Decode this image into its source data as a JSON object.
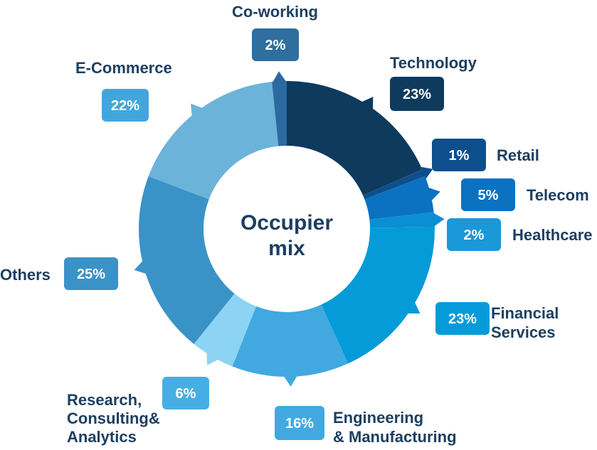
{
  "chart_data": {
    "type": "pie",
    "title": "Occupier mix",
    "title_lines": [
      "Occupier",
      "mix"
    ],
    "start_at": "top",
    "direction": "clockwise",
    "donut": true,
    "slices": [
      {
        "label_lines": [
          "Technology"
        ],
        "value": 23,
        "value_label": "23%",
        "color": "#0e3a5e",
        "box_color": "#0e3a5e"
      },
      {
        "label_lines": [
          "Retail"
        ],
        "value": 1,
        "value_label": "1%",
        "color": "#0d4f8c",
        "box_color": "#0d4f8c"
      },
      {
        "label_lines": [
          "Telecom"
        ],
        "value": 5,
        "value_label": "5%",
        "color": "#0a72c0",
        "box_color": "#0a72c0"
      },
      {
        "label_lines": [
          "Healthcare"
        ],
        "value": 2,
        "value_label": "2%",
        "color": "#0b8fd3",
        "box_color": "#1b98d8"
      },
      {
        "label_lines": [
          "Financial",
          "Services"
        ],
        "value": 23,
        "value_label": "23%",
        "color": "#049bd8",
        "box_color": "#049bd8"
      },
      {
        "label_lines": [
          "Engineering",
          "& Manufacturing"
        ],
        "value": 16,
        "value_label": "16%",
        "color": "#41a9e0",
        "box_color": "#41a9e0"
      },
      {
        "label_lines": [
          "Research,",
          "Consulting&",
          "Analytics"
        ],
        "value": 6,
        "value_label": "6%",
        "color": "#8dd3f3",
        "box_color": "#47aee3"
      },
      {
        "label_lines": [
          "Others"
        ],
        "value": 25,
        "value_label": "25%",
        "color": "#3a93c7",
        "box_color": "#3a93c7"
      },
      {
        "label_lines": [
          "E-Commerce"
        ],
        "value": 22,
        "value_label": "22%",
        "color": "#6cb3da",
        "box_color": "#42a6dd"
      },
      {
        "label_lines": [
          "Co-working"
        ],
        "value": 2,
        "value_label": "2%",
        "color": "#2b6aa0",
        "box_color": "#2f6e9f"
      }
    ]
  }
}
